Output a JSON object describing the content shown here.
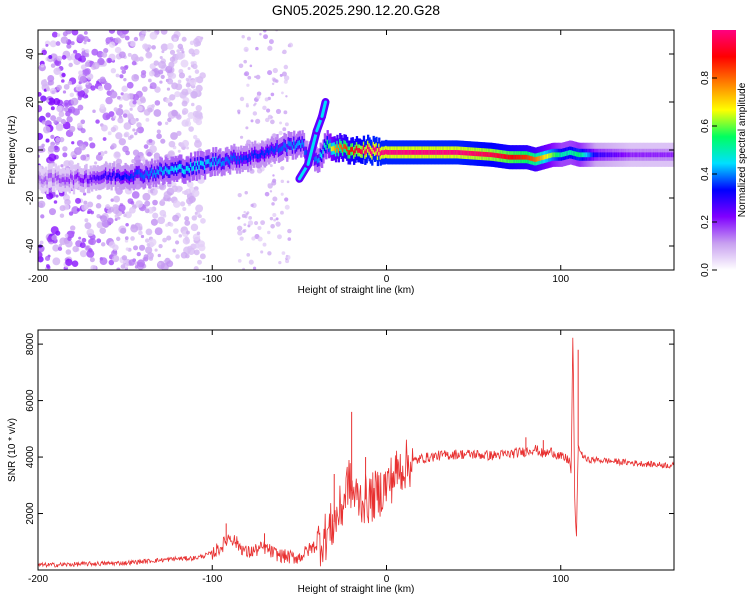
{
  "title": "GN05.2025.290.12.20.G28",
  "chart_data": [
    {
      "type": "heatmap",
      "xlabel": "Height of straight line (km)",
      "ylabel": "Frequency (Hz)",
      "xlim": [
        -200,
        165
      ],
      "ylim": [
        -50,
        50
      ],
      "xticks": [
        -200,
        -100,
        0,
        100
      ],
      "yticks": [
        -40,
        -20,
        0,
        20,
        40
      ],
      "ridge": {
        "x": [
          -200,
          -180,
          -160,
          -140,
          -120,
          -110,
          -100,
          -90,
          -80,
          -70,
          -60,
          -50,
          -45,
          -40,
          -35,
          -30,
          -20,
          -10,
          0,
          20,
          40,
          60,
          70,
          80,
          85,
          90,
          95,
          100,
          105,
          110,
          120,
          140,
          165
        ],
        "y": [
          -12,
          -12,
          -11,
          -10,
          -8,
          -7,
          -5,
          -4,
          -3,
          -1,
          1,
          3,
          -2,
          -4,
          2,
          1,
          0,
          0,
          -1,
          -1,
          -1,
          -2,
          -3,
          -3,
          -4,
          -3,
          -2,
          -2,
          -1,
          -2,
          -2,
          -2,
          -2
        ],
        "amp": [
          0.15,
          0.2,
          0.3,
          0.38,
          0.45,
          0.45,
          0.42,
          0.38,
          0.35,
          0.35,
          0.38,
          0.42,
          0.35,
          0.4,
          0.5,
          0.75,
          0.9,
          1.0,
          1.0,
          1.0,
          1.0,
          0.95,
          0.9,
          0.85,
          0.8,
          0.7,
          0.6,
          0.5,
          0.5,
          0.55,
          0.3,
          0.2,
          0.2
        ]
      },
      "branch": {
        "x": [
          -50,
          -45,
          -40,
          -37,
          -35
        ],
        "y": [
          -12,
          -6,
          8,
          14,
          20
        ]
      },
      "colorbar": {
        "label": "Normalized spectral amplitude",
        "ticks": [
          0.0,
          0.2,
          0.4,
          0.6,
          0.8
        ],
        "range": [
          0,
          1
        ],
        "colors": [
          "#ffffff",
          "#c8a0f0",
          "#8000ff",
          "#0000ff",
          "#00e0ff",
          "#00ff60",
          "#ffff00",
          "#ff8000",
          "#ff0000",
          "#ff0080"
        ]
      }
    },
    {
      "type": "line",
      "xlabel": "Height of straight line (km)",
      "ylabel": "SNR (10 * v/v)",
      "xlim": [
        -200,
        165
      ],
      "ylim": [
        0,
        8500
      ],
      "xticks": [
        -200,
        -100,
        0,
        100
      ],
      "yticks": [
        2000,
        4000,
        6000,
        8000
      ],
      "color": "#e83030",
      "x": [
        -200,
        -190,
        -180,
        -170,
        -160,
        -150,
        -140,
        -130,
        -120,
        -110,
        -105,
        -100,
        -95,
        -90,
        -85,
        -80,
        -75,
        -70,
        -65,
        -60,
        -55,
        -50,
        -45,
        -40,
        -35,
        -30,
        -25,
        -22,
        -20,
        -18,
        -15,
        -10,
        -5,
        0,
        5,
        10,
        20,
        30,
        40,
        50,
        60,
        70,
        80,
        85,
        90,
        95,
        100,
        105,
        106,
        107,
        108,
        109,
        110,
        112,
        115,
        120,
        130,
        140,
        150,
        165
      ],
      "y": [
        180,
        180,
        200,
        220,
        230,
        250,
        300,
        350,
        400,
        420,
        500,
        600,
        800,
        1200,
        900,
        600,
        700,
        800,
        600,
        500,
        450,
        450,
        700,
        900,
        1200,
        1700,
        2300,
        3200,
        2800,
        2600,
        2500,
        2500,
        2700,
        3000,
        3400,
        3700,
        3950,
        4050,
        4100,
        4100,
        4050,
        4100,
        4200,
        4300,
        4100,
        4200,
        4000,
        3900,
        3400,
        8500,
        2500,
        1000,
        4400,
        4100,
        3900,
        3900,
        3850,
        3800,
        3750,
        3700
      ],
      "spikes": [
        {
          "x": -92,
          "y": 1650
        },
        {
          "x": -70,
          "y": 1300
        },
        {
          "x": -30,
          "y": 3400
        },
        {
          "x": -20,
          "y": 5600
        },
        {
          "x": -12,
          "y": 4000
        },
        {
          "x": 80,
          "y": 4700
        },
        {
          "x": 90,
          "y": 4600
        },
        {
          "x": 107,
          "y": 8500
        },
        {
          "x": 110,
          "y": 7800
        }
      ]
    }
  ]
}
